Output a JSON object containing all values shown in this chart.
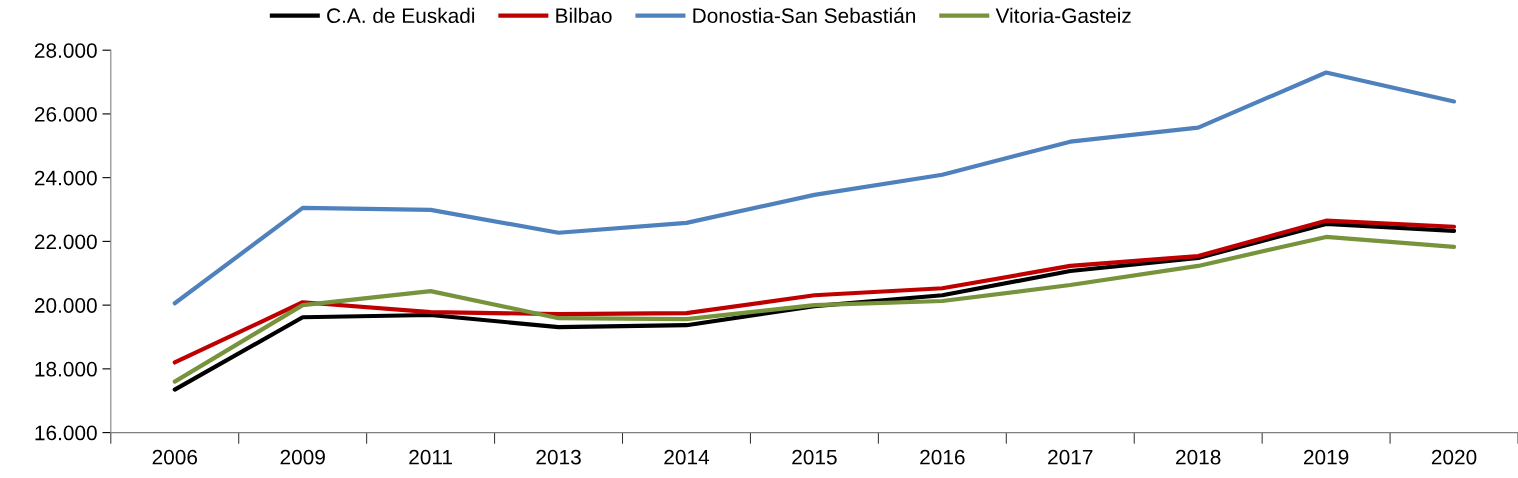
{
  "chart_data": {
    "type": "line",
    "categories": [
      "2006",
      "2009",
      "2011",
      "2013",
      "2014",
      "2015",
      "2016",
      "2017",
      "2018",
      "2019",
      "2020"
    ],
    "series": [
      {
        "name": "C.A. de Euskadi",
        "color": "#000000",
        "values": [
          17350,
          19620,
          19690,
          19310,
          19370,
          19970,
          20310,
          21070,
          21480,
          22550,
          22330
        ]
      },
      {
        "name": "Bilbao",
        "color": "#c00000",
        "values": [
          18200,
          20090,
          19780,
          19720,
          19750,
          20310,
          20530,
          21230,
          21540,
          22650,
          22460
        ]
      },
      {
        "name": "Donostia-San Sebastián",
        "color": "#4f81bd",
        "values": [
          20060,
          23050,
          22990,
          22270,
          22580,
          23460,
          24090,
          25130,
          25570,
          27300,
          26390
        ]
      },
      {
        "name": "Vitoria-Gasteiz",
        "color": "#77933c",
        "values": [
          17600,
          20000,
          20440,
          19590,
          19560,
          20000,
          20130,
          20630,
          21230,
          22140,
          21830
        ]
      }
    ],
    "ylim": [
      16000,
      28000
    ],
    "yticks": [
      {
        "value": 16000,
        "label": "16.000"
      },
      {
        "value": 18000,
        "label": "18.000"
      },
      {
        "value": 20000,
        "label": "20.000"
      },
      {
        "value": 22000,
        "label": "22.000"
      },
      {
        "value": 24000,
        "label": "24.000"
      },
      {
        "value": 26000,
        "label": "26.000"
      },
      {
        "value": 28000,
        "label": "28.000"
      }
    ],
    "grid": false,
    "legend": "top",
    "marker": "none",
    "line_style": "solid"
  }
}
